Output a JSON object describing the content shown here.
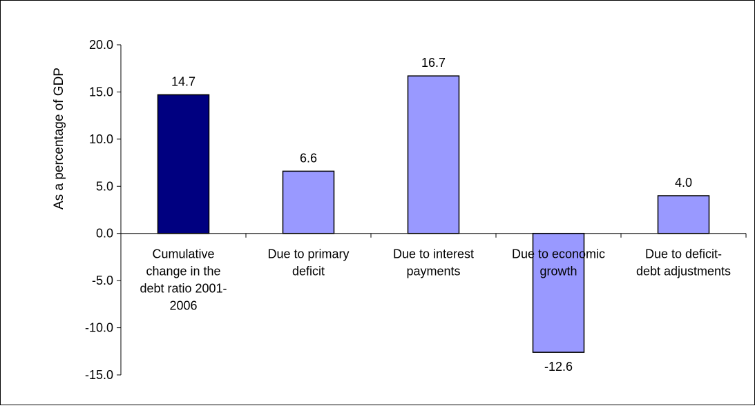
{
  "chart_data": {
    "type": "bar",
    "title": "",
    "xlabel": "",
    "ylabel": "As a percentage of GDP",
    "ylim": [
      -15,
      20
    ],
    "ytick_step": 5,
    "ytick_labels": [
      "-15.0",
      "-10.0",
      "-5.0",
      "0.0",
      "5.0",
      "10.0",
      "15.0",
      "20.0"
    ],
    "categories": [
      [
        "Cumulative",
        "change in the",
        "debt ratio 2001-",
        "2006"
      ],
      [
        "Due to primary",
        "deficit"
      ],
      [
        "Due to interest",
        "payments"
      ],
      [
        "Due to economic",
        "growth"
      ],
      [
        "Due to deficit-",
        "debt adjustments"
      ]
    ],
    "values": [
      14.7,
      6.6,
      16.7,
      -12.6,
      4.0
    ],
    "data_labels": [
      "14.7",
      "6.6",
      "16.7",
      "-12.6",
      "4.0"
    ],
    "bar_colors": [
      "#000080",
      "#9999FF",
      "#9999FF",
      "#9999FF",
      "#9999FF"
    ],
    "grid": false,
    "legend": "none"
  }
}
